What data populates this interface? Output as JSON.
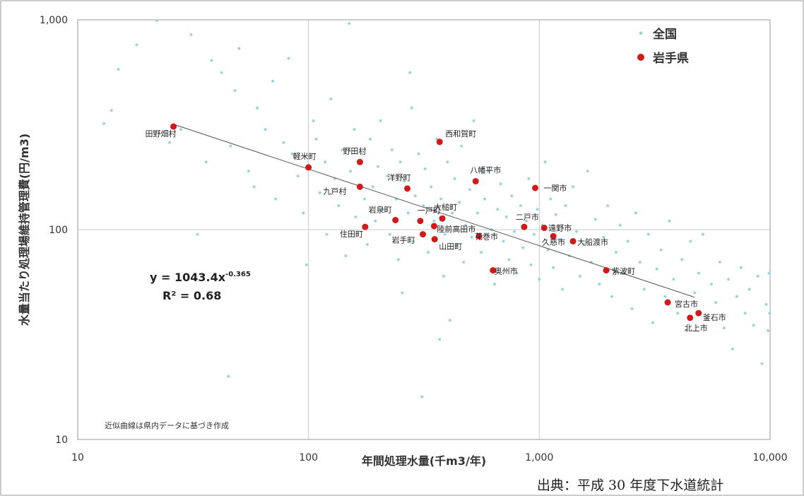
{
  "chart_data": {
    "type": "scatter",
    "scale": "log-log",
    "xlabel": "年間処理水量(千m3/年)",
    "ylabel": "水量当たり処理場維持管理費(円/m3)",
    "xlim": [
      10,
      10000
    ],
    "ylim": [
      10,
      1000
    ],
    "x_ticks": [
      10,
      100,
      1000,
      10000
    ],
    "x_tick_labels": [
      "10",
      "100",
      "1,000",
      "10,000"
    ],
    "y_ticks": [
      10,
      100,
      1000
    ],
    "y_tick_labels": [
      "10",
      "100",
      "1,000"
    ],
    "grid": true,
    "legend_position": "top-right",
    "legend": {
      "national": "全国",
      "iwate": "岩手県"
    },
    "colors": {
      "national": "#9fd3d6",
      "iwate": "#d01a1a",
      "trend": "#555555",
      "grid": "#c8c8c8",
      "frame": "#9a9a9a"
    },
    "equation": "y = 1043.4x",
    "equation_exponent": "-0.365",
    "r_squared": "R² = 0.68",
    "note": "近似曲線は県内データに基づき作成",
    "trendline": {
      "a": 1043.4,
      "b": -0.365,
      "x_range": [
        26,
        4700
      ]
    },
    "series": [
      {
        "name": "岩手県",
        "points": [
          {
            "label": "田野畑村",
            "x": 26,
            "y": 310
          },
          {
            "label": "軽米町",
            "x": 100,
            "y": 198
          },
          {
            "label": "野田村",
            "x": 167,
            "y": 210
          },
          {
            "label": "九戸村",
            "x": 167,
            "y": 160
          },
          {
            "label": "西和賀町",
            "x": 370,
            "y": 262
          },
          {
            "label": "洋野町",
            "x": 268,
            "y": 157
          },
          {
            "label": "八幡平市",
            "x": 530,
            "y": 170
          },
          {
            "label": "一関市",
            "x": 960,
            "y": 158
          },
          {
            "label": "大槌町",
            "x": 380,
            "y": 113
          },
          {
            "label": "岩泉町",
            "x": 238,
            "y": 111
          },
          {
            "label": "一戸町",
            "x": 305,
            "y": 110
          },
          {
            "label": "住田町",
            "x": 176,
            "y": 103
          },
          {
            "label": "陸前高田市",
            "x": 350,
            "y": 104
          },
          {
            "label": "岩手町",
            "x": 313,
            "y": 95
          },
          {
            "label": "山田町",
            "x": 352,
            "y": 90
          },
          {
            "label": "花巻市",
            "x": 548,
            "y": 93
          },
          {
            "label": "二戸市",
            "x": 860,
            "y": 103
          },
          {
            "label": "遠野市",
            "x": 1050,
            "y": 102
          },
          {
            "label": "久慈市",
            "x": 1150,
            "y": 93
          },
          {
            "label": "大船渡市",
            "x": 1400,
            "y": 88
          },
          {
            "label": "奥州市",
            "x": 630,
            "y": 64
          },
          {
            "label": "紫波町",
            "x": 1950,
            "y": 64
          },
          {
            "label": "宮古市",
            "x": 3600,
            "y": 45
          },
          {
            "label": "釜石市",
            "x": 4900,
            "y": 40
          },
          {
            "label": "北上市",
            "x": 4500,
            "y": 38
          }
        ]
      },
      {
        "name": "全国",
        "points": [
          {
            "x": 13,
            "y": 320
          },
          {
            "x": 14,
            "y": 370
          },
          {
            "x": 15,
            "y": 580
          },
          {
            "x": 18,
            "y": 760
          },
          {
            "x": 22,
            "y": 990
          },
          {
            "x": 25,
            "y": 260
          },
          {
            "x": 28,
            "y": 300
          },
          {
            "x": 31,
            "y": 850
          },
          {
            "x": 33,
            "y": 95
          },
          {
            "x": 36,
            "y": 210
          },
          {
            "x": 38,
            "y": 640
          },
          {
            "x": 42,
            "y": 560
          },
          {
            "x": 45,
            "y": 20
          },
          {
            "x": 46,
            "y": 250
          },
          {
            "x": 48,
            "y": 460
          },
          {
            "x": 50,
            "y": 730
          },
          {
            "x": 55,
            "y": 190
          },
          {
            "x": 58,
            "y": 160
          },
          {
            "x": 60,
            "y": 380
          },
          {
            "x": 65,
            "y": 300
          },
          {
            "x": 70,
            "y": 510
          },
          {
            "x": 72,
            "y": 140
          },
          {
            "x": 78,
            "y": 260
          },
          {
            "x": 82,
            "y": 655
          },
          {
            "x": 85,
            "y": 230
          },
          {
            "x": 90,
            "y": 180
          },
          {
            "x": 95,
            "y": 120
          },
          {
            "x": 98,
            "y": 68
          },
          {
            "x": 105,
            "y": 330
          },
          {
            "x": 108,
            "y": 270
          },
          {
            "x": 112,
            "y": 150
          },
          {
            "x": 118,
            "y": 210
          },
          {
            "x": 120,
            "y": 95
          },
          {
            "x": 125,
            "y": 420
          },
          {
            "x": 130,
            "y": 175
          },
          {
            "x": 135,
            "y": 130
          },
          {
            "x": 140,
            "y": 240
          },
          {
            "x": 145,
            "y": 75
          },
          {
            "x": 150,
            "y": 960
          },
          {
            "x": 152,
            "y": 190
          },
          {
            "x": 158,
            "y": 300
          },
          {
            "x": 160,
            "y": 115
          },
          {
            "x": 170,
            "y": 230
          },
          {
            "x": 175,
            "y": 140
          },
          {
            "x": 180,
            "y": 85
          },
          {
            "x": 185,
            "y": 270
          },
          {
            "x": 190,
            "y": 160
          },
          {
            "x": 195,
            "y": 110
          },
          {
            "x": 200,
            "y": 200
          },
          {
            "x": 205,
            "y": 330
          },
          {
            "x": 210,
            "y": 125
          },
          {
            "x": 220,
            "y": 180
          },
          {
            "x": 225,
            "y": 95
          },
          {
            "x": 230,
            "y": 240
          },
          {
            "x": 240,
            "y": 140
          },
          {
            "x": 245,
            "y": 72
          },
          {
            "x": 250,
            "y": 210
          },
          {
            "x": 255,
            "y": 50
          },
          {
            "x": 260,
            "y": 170
          },
          {
            "x": 270,
            "y": 120
          },
          {
            "x": 275,
            "y": 560
          },
          {
            "x": 280,
            "y": 380
          },
          {
            "x": 285,
            "y": 88
          },
          {
            "x": 290,
            "y": 145
          },
          {
            "x": 300,
            "y": 230
          },
          {
            "x": 310,
            "y": 16
          },
          {
            "x": 315,
            "y": 130
          },
          {
            "x": 320,
            "y": 195
          },
          {
            "x": 330,
            "y": 78
          },
          {
            "x": 340,
            "y": 160
          },
          {
            "x": 350,
            "y": 110
          },
          {
            "x": 360,
            "y": 270
          },
          {
            "x": 370,
            "y": 30
          },
          {
            "x": 375,
            "y": 140
          },
          {
            "x": 385,
            "y": 60
          },
          {
            "x": 390,
            "y": 95
          },
          {
            "x": 400,
            "y": 210
          },
          {
            "x": 410,
            "y": 37
          },
          {
            "x": 420,
            "y": 120
          },
          {
            "x": 430,
            "y": 175
          },
          {
            "x": 440,
            "y": 85
          },
          {
            "x": 450,
            "y": 135
          },
          {
            "x": 460,
            "y": 250
          },
          {
            "x": 470,
            "y": 70
          },
          {
            "x": 480,
            "y": 105
          },
          {
            "x": 500,
            "y": 155
          },
          {
            "x": 510,
            "y": 92
          },
          {
            "x": 520,
            "y": 330
          },
          {
            "x": 540,
            "y": 120
          },
          {
            "x": 560,
            "y": 78
          },
          {
            "x": 580,
            "y": 140
          },
          {
            "x": 600,
            "y": 190
          },
          {
            "x": 620,
            "y": 100
          },
          {
            "x": 640,
            "y": 55
          },
          {
            "x": 660,
            "y": 125
          },
          {
            "x": 680,
            "y": 165
          },
          {
            "x": 700,
            "y": 88
          },
          {
            "x": 720,
            "y": 115
          },
          {
            "x": 740,
            "y": 72
          },
          {
            "x": 760,
            "y": 145
          },
          {
            "x": 780,
            "y": 98
          },
          {
            "x": 800,
            "y": 62
          },
          {
            "x": 830,
            "y": 130
          },
          {
            "x": 850,
            "y": 82
          },
          {
            "x": 880,
            "y": 110
          },
          {
            "x": 900,
            "y": 175
          },
          {
            "x": 920,
            "y": 68
          },
          {
            "x": 950,
            "y": 95
          },
          {
            "x": 980,
            "y": 125
          },
          {
            "x": 1000,
            "y": 58
          },
          {
            "x": 1030,
            "y": 105
          },
          {
            "x": 1060,
            "y": 210
          },
          {
            "x": 1090,
            "y": 80
          },
          {
            "x": 1120,
            "y": 140
          },
          {
            "x": 1150,
            "y": 66
          },
          {
            "x": 1180,
            "y": 118
          },
          {
            "x": 1220,
            "y": 90
          },
          {
            "x": 1260,
            "y": 52
          },
          {
            "x": 1300,
            "y": 130
          },
          {
            "x": 1350,
            "y": 75
          },
          {
            "x": 1400,
            "y": 160
          },
          {
            "x": 1450,
            "y": 98
          },
          {
            "x": 1500,
            "y": 60
          },
          {
            "x": 1560,
            "y": 85
          },
          {
            "x": 1620,
            "y": 190
          },
          {
            "x": 1680,
            "y": 70
          },
          {
            "x": 1750,
            "y": 112
          },
          {
            "x": 1820,
            "y": 55
          },
          {
            "x": 1900,
            "y": 92
          },
          {
            "x": 1980,
            "y": 130
          },
          {
            "x": 2060,
            "y": 48
          },
          {
            "x": 2150,
            "y": 78
          },
          {
            "x": 2240,
            "y": 105
          },
          {
            "x": 2330,
            "y": 62
          },
          {
            "x": 2420,
            "y": 88
          },
          {
            "x": 2520,
            "y": 42
          },
          {
            "x": 2620,
            "y": 120
          },
          {
            "x": 2730,
            "y": 70
          },
          {
            "x": 2850,
            "y": 52
          },
          {
            "x": 2970,
            "y": 95
          },
          {
            "x": 3100,
            "y": 36
          },
          {
            "x": 3230,
            "y": 65
          },
          {
            "x": 3370,
            "y": 80
          },
          {
            "x": 3510,
            "y": 48
          },
          {
            "x": 3660,
            "y": 110
          },
          {
            "x": 3820,
            "y": 58
          },
          {
            "x": 3980,
            "y": 40
          },
          {
            "x": 4150,
            "y": 72
          },
          {
            "x": 4330,
            "y": 33
          },
          {
            "x": 4520,
            "y": 88
          },
          {
            "x": 4710,
            "y": 50
          },
          {
            "x": 4910,
            "y": 62
          },
          {
            "x": 5120,
            "y": 95
          },
          {
            "x": 5340,
            "y": 38
          },
          {
            "x": 5570,
            "y": 55
          },
          {
            "x": 5810,
            "y": 45
          },
          {
            "x": 6060,
            "y": 70
          },
          {
            "x": 6320,
            "y": 34
          },
          {
            "x": 6600,
            "y": 58
          },
          {
            "x": 6880,
            "y": 27
          },
          {
            "x": 7170,
            "y": 48
          },
          {
            "x": 7480,
            "y": 66
          },
          {
            "x": 7800,
            "y": 40
          },
          {
            "x": 8130,
            "y": 52
          },
          {
            "x": 8480,
            "y": 35
          },
          {
            "x": 8850,
            "y": 60
          },
          {
            "x": 9230,
            "y": 23
          },
          {
            "x": 9620,
            "y": 44
          },
          {
            "x": 9800,
            "y": 33
          },
          {
            "x": 9900,
            "y": 62
          },
          {
            "x": 9950,
            "y": 40
          }
        ]
      }
    ]
  },
  "source": "出典：平成 30 年度下水道統計"
}
